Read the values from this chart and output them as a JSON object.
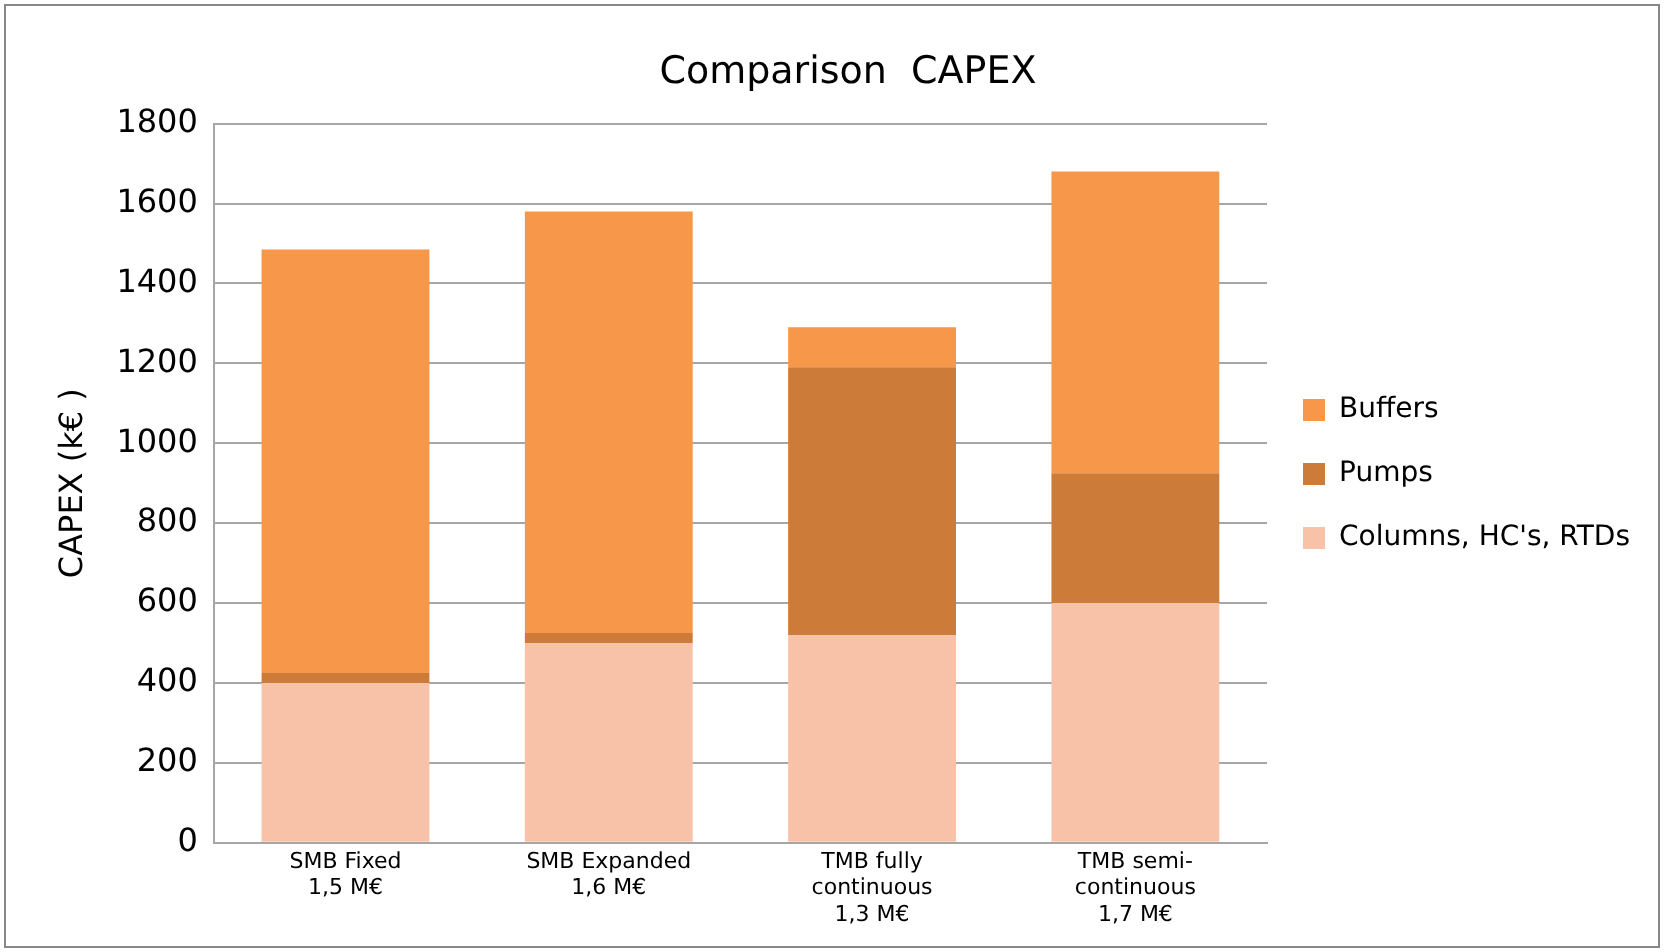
{
  "chart_data": {
    "type": "bar",
    "title": "Comparison  CAPEX",
    "ylabel": "CAPEX (k€ )",
    "categories": [
      "SMB Fixed\n1,5 M€",
      "SMB Expanded\n1,6 M€",
      "TMB fully\ncontinuous\n1,3 M€",
      "TMB semi-\ncontinuous\n1,7 M€"
    ],
    "series": [
      {
        "name": "Columns, HC's, RTDs",
        "color": "#f8c2a8",
        "values": [
          400,
          500,
          520,
          600
        ]
      },
      {
        "name": "Pumps",
        "color": "#cd7b38",
        "values": [
          25,
          25,
          670,
          325
        ]
      },
      {
        "name": "Buffers",
        "color": "#f69749",
        "values": [
          1060,
          1055,
          100,
          755
        ]
      }
    ],
    "stacked": true,
    "ylim": [
      0,
      1800
    ],
    "yticks": [
      0,
      200,
      400,
      600,
      800,
      1000,
      1200,
      1400,
      1600,
      1800
    ],
    "grid": "y",
    "legend": "right"
  }
}
